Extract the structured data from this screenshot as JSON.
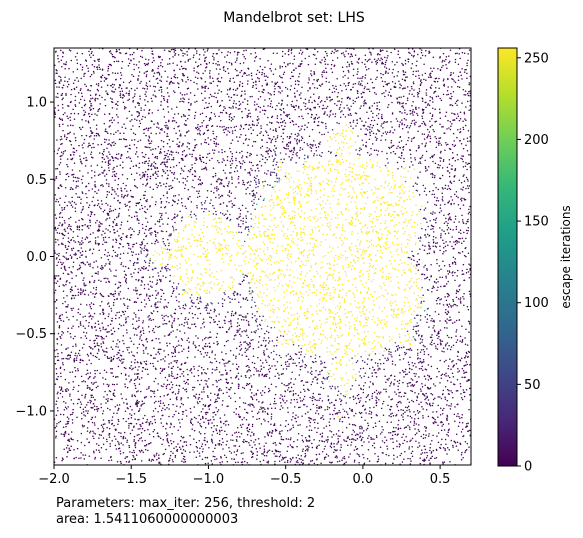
{
  "chart_data": {
    "type": "scatter",
    "title": "Mandelbrot set: LHS",
    "xlabel": "",
    "ylabel": "",
    "xlim": [
      -2.0,
      0.7
    ],
    "ylim": [
      -1.35,
      1.35
    ],
    "xticks": [
      -2.0,
      -1.5,
      -1.0,
      -0.5,
      0.0,
      0.5
    ],
    "xtick_labels": [
      "−2.0",
      "−1.5",
      "−1.0",
      "−0.5",
      "0.0",
      "0.5"
    ],
    "yticks": [
      1.0,
      0.5,
      0.0,
      -0.5,
      -1.0
    ],
    "ytick_labels": [
      "1.0",
      "0.5",
      "0.0",
      "−0.5",
      "−1.0"
    ],
    "grid": false,
    "colormap": "viridis",
    "colormap_stops": [
      "#440154",
      "#482878",
      "#3e4989",
      "#31688e",
      "#26828e",
      "#1f9e89",
      "#35b779",
      "#6ece58",
      "#b5de2b",
      "#fde725"
    ],
    "point_count_approx": 10000,
    "points_in_set_value": 256,
    "points_escaped_value_typical": 1,
    "colorbar": {
      "label": "escape iterations",
      "range": [
        0,
        256
      ],
      "ticks": [
        0,
        50,
        100,
        150,
        200,
        250
      ],
      "tick_labels": [
        "0",
        "50",
        "100",
        "150",
        "200",
        "250"
      ]
    }
  },
  "caption": {
    "line1": "Parameters: max_iter: 256, threshold: 2",
    "line2": "area: 1.5411060000000003"
  }
}
